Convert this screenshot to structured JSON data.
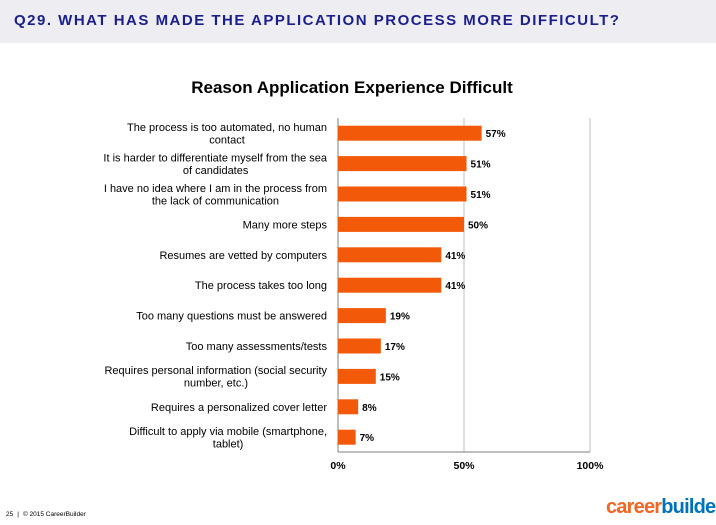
{
  "header": {
    "title": "Q29. WHAT HAS MADE THE APPLICATION PROCESS MORE DIFFICULT?"
  },
  "footer": {
    "page_number": "25",
    "separator": "|",
    "copyright": "© 2015 CareerBuilder"
  },
  "logo": {
    "part1": "career",
    "part2": "builder",
    "trademark": "®"
  },
  "colors": {
    "header_text": "#1a1f8c",
    "header_band": "#eeeef2",
    "bar": "#f25a0a",
    "logo_orange": "#f26522",
    "logo_blue": "#0072bc"
  },
  "chart_data": {
    "type": "bar",
    "orientation": "horizontal",
    "title": "Reason Application Experience Difficult",
    "categories": [
      "The process is too automated, no human contact",
      "It is harder to differentiate myself from the sea of candidates",
      "I have no idea where I am in the process from the lack of communication",
      "Many more steps",
      "Resumes are vetted by computers",
      "The process takes too long",
      "Too many questions must be answered",
      "Too many assessments/tests",
      "Requires personal information (social security number, etc.)",
      "Requires a personalized cover letter",
      "Difficult to apply via mobile (smartphone, tablet)"
    ],
    "category_lines": [
      [
        "The process is too automated, no human",
        "contact"
      ],
      [
        "It is harder to differentiate myself from the sea",
        "of candidates"
      ],
      [
        "I have no idea where I am in the process from",
        "the lack of communication"
      ],
      [
        "Many more steps"
      ],
      [
        "Resumes are vetted by computers"
      ],
      [
        "The process takes too long"
      ],
      [
        "Too many questions must be answered"
      ],
      [
        "Too many assessments/tests"
      ],
      [
        "Requires personal information (social security",
        "number, etc.)"
      ],
      [
        "Requires a personalized cover letter"
      ],
      [
        "Difficult to apply via mobile (smartphone,",
        "tablet)"
      ]
    ],
    "values": [
      57,
      51,
      51,
      50,
      41,
      41,
      19,
      17,
      15,
      8,
      7
    ],
    "data_labels": [
      "57%",
      "51%",
      "51%",
      "50%",
      "41%",
      "41%",
      "19%",
      "17%",
      "15%",
      "8%",
      "7%"
    ],
    "xlim": [
      0,
      100
    ],
    "x_ticks": [
      0,
      50,
      100
    ],
    "x_tick_labels": [
      "0%",
      "50%",
      "100%"
    ],
    "gridlines": true,
    "legend": "none"
  }
}
